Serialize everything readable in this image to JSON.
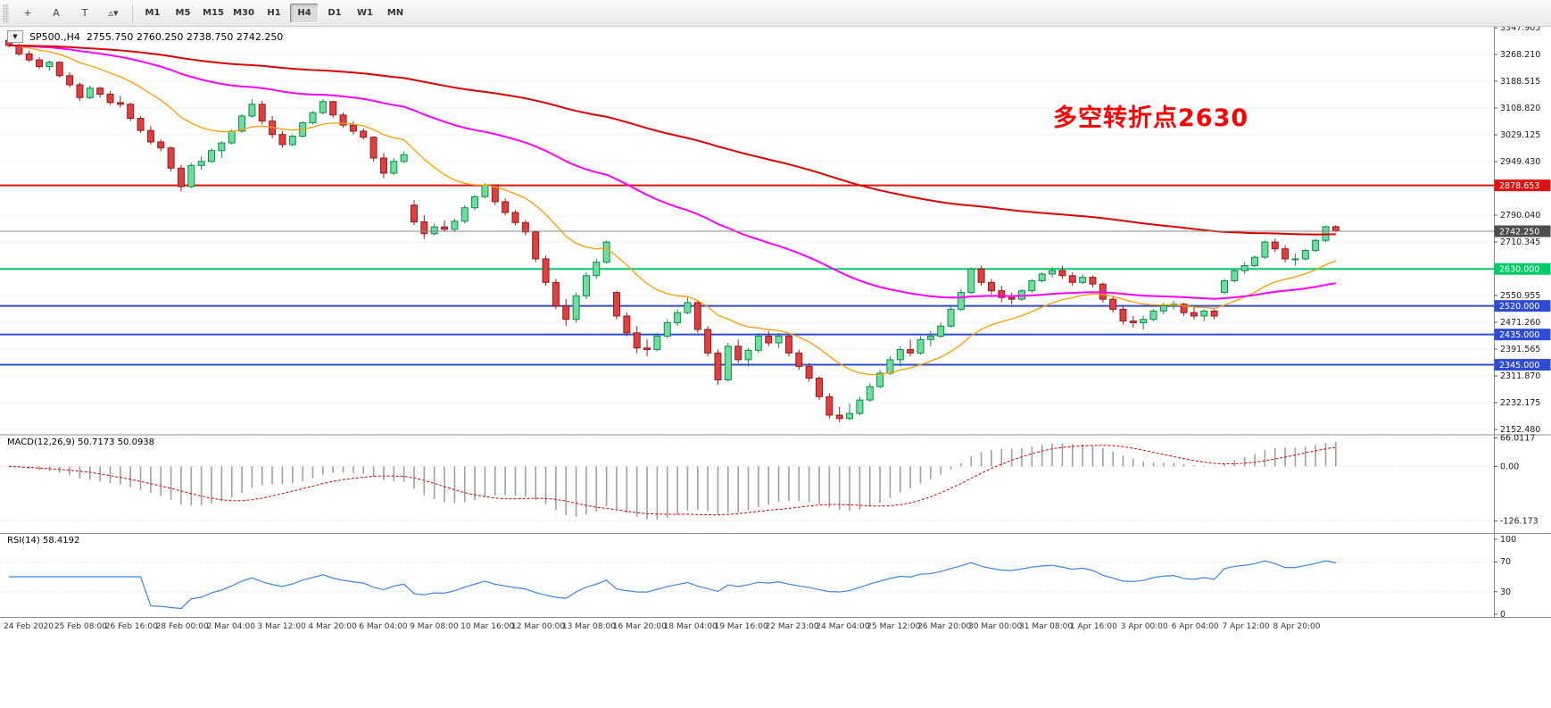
{
  "toolbar": {
    "icons": [
      {
        "name": "crosshair-icon",
        "glyph": "+"
      },
      {
        "name": "text-label-icon",
        "glyph": "A"
      },
      {
        "name": "text-cursor-icon",
        "glyph": "T"
      },
      {
        "name": "shapes-dropdown-icon",
        "glyph": "▵▾"
      }
    ],
    "timeframes": [
      "M1",
      "M5",
      "M15",
      "M30",
      "H1",
      "H4",
      "D1",
      "W1",
      "MN"
    ],
    "active_timeframe": "H4"
  },
  "chart": {
    "dropdown_glyph": "▼",
    "symbol_title": "SP500.,H4",
    "ohlc_text": "2755.750 2760.250 2738.750 2742.250",
    "annotation": {
      "text": "多空转折点2630",
      "color": "#ff0000"
    }
  },
  "chart_data": {
    "type": "candlestick",
    "symbol": "SP500.",
    "timeframe": "H4",
    "current": {
      "open": 2755.75,
      "high": 2760.25,
      "low": 2738.75,
      "close": 2742.25
    },
    "current_price_line": {
      "price": 2742.25,
      "label": "2742.250"
    },
    "horizontal_lines": [
      {
        "price": 2878.653,
        "label": "2878.653",
        "color": "#dd1212"
      },
      {
        "price": 2630.0,
        "label": "2630.000",
        "color": "#00cc6a"
      },
      {
        "price": 2520.0,
        "label": "2520.000",
        "color": "#2e4bd2"
      },
      {
        "price": 2435.0,
        "label": "2435.000",
        "color": "#2e4bd2"
      },
      {
        "price": 2345.0,
        "label": "2345.000",
        "color": "#2e4bd2"
      }
    ],
    "price_scale_ticks": [
      "3347.905",
      "3268.210",
      "3188.515",
      "3108.820",
      "3029.125",
      "2949.430",
      "2869.735",
      "2790.040",
      "2710.345",
      "2630.650",
      "2550.955",
      "2471.260",
      "2391.565",
      "2311.870",
      "2232.175",
      "2152.480"
    ],
    "time_labels": [
      "24 Feb 2020",
      "25 Feb 08:00",
      "26 Feb 16:00",
      "28 Feb 00:00",
      "2 Mar 04:00",
      "3 Mar 12:00",
      "4 Mar 20:00",
      "6 Mar 04:00",
      "9 Mar 08:00",
      "10 Mar 16:00",
      "12 Mar 00:00",
      "13 Mar 08:00",
      "16 Mar 20:00",
      "18 Mar 04:00",
      "19 Mar 16:00",
      "22 Mar 23:00",
      "24 Mar 04:00",
      "25 Mar 12:00",
      "26 Mar 20:00",
      "30 Mar 00:00",
      "31 Mar 08:00",
      "1 Apr 16:00",
      "3 Apr 00:00",
      "6 Apr 04:00",
      "7 Apr 12:00",
      "8 Apr 20:00"
    ],
    "candles": [
      [
        3310,
        3315,
        3290,
        3295
      ],
      [
        3295,
        3300,
        3265,
        3270
      ],
      [
        3270,
        3280,
        3245,
        3252
      ],
      [
        3252,
        3260,
        3225,
        3232
      ],
      [
        3232,
        3250,
        3220,
        3245
      ],
      [
        3245,
        3248,
        3200,
        3205
      ],
      [
        3205,
        3215,
        3170,
        3178
      ],
      [
        3178,
        3185,
        3130,
        3140
      ],
      [
        3140,
        3175,
        3135,
        3168
      ],
      [
        3168,
        3172,
        3140,
        3150
      ],
      [
        3150,
        3160,
        3118,
        3125
      ],
      [
        3125,
        3145,
        3110,
        3120
      ],
      [
        3120,
        3125,
        3070,
        3078
      ],
      [
        3078,
        3085,
        3035,
        3042
      ],
      [
        3042,
        3055,
        3000,
        3008
      ],
      [
        3008,
        3015,
        2980,
        2990
      ],
      [
        2990,
        2995,
        2920,
        2930
      ],
      [
        2930,
        2940,
        2860,
        2875
      ],
      [
        2875,
        2945,
        2870,
        2938
      ],
      [
        2938,
        2965,
        2925,
        2950
      ],
      [
        2950,
        2990,
        2945,
        2982
      ],
      [
        2982,
        3010,
        2960,
        3005
      ],
      [
        3005,
        3045,
        3000,
        3040
      ],
      [
        3040,
        3090,
        3035,
        3085
      ],
      [
        3085,
        3135,
        3080,
        3120
      ],
      [
        3120,
        3130,
        3060,
        3070
      ],
      [
        3070,
        3085,
        3020,
        3030
      ],
      [
        3030,
        3040,
        2990,
        3000
      ],
      [
        3000,
        3030,
        2995,
        3025
      ],
      [
        3025,
        3070,
        3020,
        3065
      ],
      [
        3065,
        3100,
        3060,
        3095
      ],
      [
        3095,
        3135,
        3090,
        3128
      ],
      [
        3128,
        3130,
        3080,
        3088
      ],
      [
        3088,
        3095,
        3050,
        3058
      ],
      [
        3058,
        3070,
        3030,
        3040
      ],
      [
        3040,
        3048,
        3015,
        3022
      ],
      [
        3022,
        3025,
        2950,
        2960
      ],
      [
        2960,
        2975,
        2900,
        2915
      ],
      [
        2915,
        2960,
        2910,
        2950
      ],
      [
        2950,
        2980,
        2945,
        2970
      ],
      [
        2820,
        2835,
        2760,
        2770
      ],
      [
        2770,
        2790,
        2720,
        2735
      ],
      [
        2735,
        2765,
        2730,
        2755
      ],
      [
        2755,
        2775,
        2740,
        2748
      ],
      [
        2748,
        2780,
        2740,
        2772
      ],
      [
        2772,
        2820,
        2765,
        2812
      ],
      [
        2812,
        2850,
        2805,
        2845
      ],
      [
        2845,
        2885,
        2840,
        2880
      ],
      [
        2880,
        2882,
        2820,
        2830
      ],
      [
        2830,
        2840,
        2790,
        2798
      ],
      [
        2798,
        2805,
        2760,
        2768
      ],
      [
        2768,
        2775,
        2730,
        2740
      ],
      [
        2740,
        2745,
        2650,
        2660
      ],
      [
        2660,
        2670,
        2580,
        2590
      ],
      [
        2590,
        2600,
        2510,
        2520
      ],
      [
        2520,
        2540,
        2460,
        2480
      ],
      [
        2480,
        2560,
        2470,
        2550
      ],
      [
        2550,
        2620,
        2540,
        2610
      ],
      [
        2610,
        2660,
        2600,
        2650
      ],
      [
        2650,
        2715,
        2645,
        2710
      ],
      [
        2560,
        2565,
        2480,
        2490
      ],
      [
        2490,
        2500,
        2430,
        2440
      ],
      [
        2440,
        2460,
        2380,
        2395
      ],
      [
        2395,
        2420,
        2370,
        2390
      ],
      [
        2390,
        2440,
        2385,
        2430
      ],
      [
        2430,
        2480,
        2425,
        2470
      ],
      [
        2470,
        2510,
        2460,
        2500
      ],
      [
        2500,
        2545,
        2495,
        2530
      ],
      [
        2530,
        2535,
        2440,
        2450
      ],
      [
        2450,
        2460,
        2370,
        2380
      ],
      [
        2380,
        2390,
        2285,
        2300
      ],
      [
        2300,
        2410,
        2295,
        2400
      ],
      [
        2400,
        2420,
        2350,
        2360
      ],
      [
        2360,
        2395,
        2340,
        2388
      ],
      [
        2388,
        2440,
        2380,
        2430
      ],
      [
        2430,
        2445,
        2400,
        2410
      ],
      [
        2410,
        2440,
        2395,
        2430
      ],
      [
        2430,
        2435,
        2370,
        2380
      ],
      [
        2380,
        2390,
        2330,
        2340
      ],
      [
        2340,
        2350,
        2295,
        2305
      ],
      [
        2305,
        2310,
        2240,
        2250
      ],
      [
        2250,
        2260,
        2185,
        2195
      ],
      [
        2195,
        2220,
        2174,
        2185
      ],
      [
        2185,
        2230,
        2180,
        2200
      ],
      [
        2200,
        2250,
        2195,
        2240
      ],
      [
        2240,
        2290,
        2235,
        2280
      ],
      [
        2280,
        2330,
        2275,
        2320
      ],
      [
        2320,
        2370,
        2315,
        2360
      ],
      [
        2360,
        2400,
        2340,
        2390
      ],
      [
        2390,
        2420,
        2370,
        2380
      ],
      [
        2380,
        2430,
        2375,
        2420
      ],
      [
        2420,
        2445,
        2400,
        2430
      ],
      [
        2430,
        2470,
        2425,
        2460
      ],
      [
        2460,
        2520,
        2455,
        2510
      ],
      [
        2510,
        2570,
        2505,
        2560
      ],
      [
        2560,
        2635,
        2555,
        2630
      ],
      [
        2630,
        2640,
        2580,
        2590
      ],
      [
        2590,
        2600,
        2555,
        2565
      ],
      [
        2565,
        2580,
        2530,
        2545
      ],
      [
        2545,
        2560,
        2525,
        2540
      ],
      [
        2540,
        2570,
        2535,
        2565
      ],
      [
        2565,
        2600,
        2560,
        2595
      ],
      [
        2595,
        2620,
        2590,
        2615
      ],
      [
        2615,
        2635,
        2605,
        2625
      ],
      [
        2625,
        2640,
        2600,
        2610
      ],
      [
        2610,
        2620,
        2580,
        2590
      ],
      [
        2590,
        2615,
        2585,
        2605
      ],
      [
        2605,
        2610,
        2575,
        2585
      ],
      [
        2585,
        2590,
        2530,
        2540
      ],
      [
        2540,
        2550,
        2500,
        2510
      ],
      [
        2510,
        2520,
        2465,
        2475
      ],
      [
        2475,
        2490,
        2455,
        2470
      ],
      [
        2470,
        2490,
        2450,
        2480
      ],
      [
        2480,
        2510,
        2475,
        2505
      ],
      [
        2505,
        2530,
        2495,
        2520
      ],
      [
        2520,
        2535,
        2510,
        2525
      ],
      [
        2525,
        2530,
        2490,
        2500
      ],
      [
        2500,
        2515,
        2480,
        2490
      ],
      [
        2490,
        2510,
        2475,
        2505
      ],
      [
        2505,
        2510,
        2480,
        2490
      ],
      [
        2560,
        2600,
        2555,
        2595
      ],
      [
        2595,
        2630,
        2590,
        2625
      ],
      [
        2625,
        2650,
        2615,
        2640
      ],
      [
        2640,
        2670,
        2635,
        2665
      ],
      [
        2665,
        2715,
        2660,
        2710
      ],
      [
        2710,
        2720,
        2680,
        2690
      ],
      [
        2690,
        2700,
        2650,
        2660
      ],
      [
        2660,
        2675,
        2640,
        2660
      ],
      [
        2660,
        2690,
        2655,
        2685
      ],
      [
        2685,
        2720,
        2680,
        2715
      ],
      [
        2715,
        2758,
        2710,
        2755.75
      ],
      [
        2755.75,
        2760.25,
        2738.75,
        2742.25
      ]
    ],
    "moving_averages": [
      {
        "name": "ma-fast",
        "period": 16,
        "color": "#ff9c00",
        "width": 1.3
      },
      {
        "name": "ma-mid",
        "period": 60,
        "color": "#ff00ff",
        "width": 2
      },
      {
        "name": "ma-slow",
        "period": 150,
        "color": "#dd0000",
        "width": 2
      }
    ],
    "macd": {
      "label": "MACD(12,26,9)",
      "values_text": "50.7173 50.0938",
      "fast": 12,
      "slow": 26,
      "signal_period": 9,
      "ticks": [
        {
          "v": 66.0117,
          "t": "66.0117"
        },
        {
          "v": 0,
          "t": "0.00"
        },
        {
          "v": -126.173,
          "t": "-126.173"
        }
      ]
    },
    "rsi": {
      "label": "RSI(14)",
      "value_text": "58.4192",
      "period": 14,
      "ticks": [
        {
          "v": 100,
          "t": "100"
        },
        {
          "v": 70,
          "t": "70"
        },
        {
          "v": 30,
          "t": "30"
        },
        {
          "v": 0,
          "t": "0"
        }
      ]
    },
    "style": {
      "up_fill": "#70dd9e",
      "up_border": "#0e8a4a",
      "down_fill": "#dd4040",
      "down_border": "#941c1c",
      "grid": "#f0f0f0",
      "separator": "#8c8c8c",
      "scale_text": "#1a1a1a",
      "axis_text": "#333333",
      "current_line": "#888888",
      "current_badge": "#4d4d4d",
      "histogram": "#a0a0a0",
      "signal": "#d40000",
      "rsi": "#3d85e0"
    }
  }
}
